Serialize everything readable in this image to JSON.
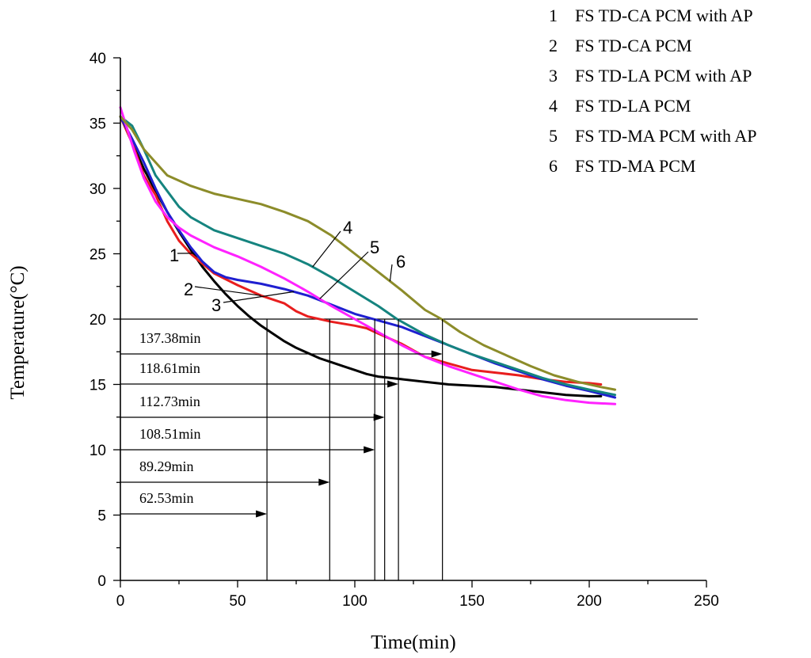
{
  "chart_data": {
    "type": "line",
    "xlabel": "Time(min)",
    "ylabel": "Temperature(°C)",
    "xlim": [
      0,
      250
    ],
    "ylim": [
      0,
      40
    ],
    "xticks": [
      0,
      50,
      100,
      150,
      200,
      250
    ],
    "yticks": [
      0,
      5,
      10,
      15,
      20,
      25,
      30,
      35,
      40
    ],
    "threshold_temperature": 20,
    "legend": [
      {
        "num": "1",
        "label": "FS TD-CA PCM with AP"
      },
      {
        "num": "2",
        "label": "FS TD-CA PCM"
      },
      {
        "num": "3",
        "label": "FS TD-LA PCM with AP"
      },
      {
        "num": "4",
        "label": "FS TD-LA PCM"
      },
      {
        "num": "5",
        "label": "FS TD-MA PCM with AP"
      },
      {
        "num": "6",
        "label": "FS TD-MA PCM"
      }
    ],
    "series": [
      {
        "id": "1",
        "name": "FS TD-CA PCM with AP",
        "color": "#000000",
        "points": [
          [
            0,
            35.5
          ],
          [
            5,
            33.5
          ],
          [
            10,
            31.5
          ],
          [
            15,
            29.8
          ],
          [
            20,
            28.2
          ],
          [
            25,
            26.7
          ],
          [
            30,
            25.3
          ],
          [
            35,
            24.0
          ],
          [
            40,
            22.9
          ],
          [
            45,
            21.9
          ],
          [
            50,
            21.0
          ],
          [
            55,
            20.2
          ],
          [
            60,
            19.5
          ],
          [
            65,
            18.9
          ],
          [
            70,
            18.3
          ],
          [
            75,
            17.8
          ],
          [
            80,
            17.4
          ],
          [
            85,
            17.0
          ],
          [
            90,
            16.7
          ],
          [
            95,
            16.4
          ],
          [
            100,
            16.1
          ],
          [
            105,
            15.8
          ],
          [
            110,
            15.6
          ],
          [
            115,
            15.5
          ],
          [
            120,
            15.4
          ],
          [
            130,
            15.2
          ],
          [
            140,
            15.0
          ],
          [
            150,
            14.9
          ],
          [
            160,
            14.8
          ],
          [
            170,
            14.6
          ],
          [
            180,
            14.4
          ],
          [
            190,
            14.2
          ],
          [
            200,
            14.1
          ],
          [
            205,
            14.1
          ]
        ]
      },
      {
        "id": "2",
        "name": "FS TD-CA PCM",
        "color": "#e81e1e",
        "points": [
          [
            0,
            35.5
          ],
          [
            5,
            33.5
          ],
          [
            10,
            31.0
          ],
          [
            15,
            29.5
          ],
          [
            20,
            27.5
          ],
          [
            25,
            26.0
          ],
          [
            30,
            25.0
          ],
          [
            40,
            23.5
          ],
          [
            50,
            22.6
          ],
          [
            60,
            21.8
          ],
          [
            70,
            21.2
          ],
          [
            75,
            20.6
          ],
          [
            80,
            20.2
          ],
          [
            90,
            19.8
          ],
          [
            100,
            19.5
          ],
          [
            105,
            19.3
          ],
          [
            110,
            18.9
          ],
          [
            115,
            18.5
          ],
          [
            120,
            18.1
          ],
          [
            125,
            17.6
          ],
          [
            130,
            17.1
          ],
          [
            140,
            16.6
          ],
          [
            150,
            16.1
          ],
          [
            160,
            15.9
          ],
          [
            170,
            15.7
          ],
          [
            180,
            15.4
          ],
          [
            190,
            15.2
          ],
          [
            200,
            15.1
          ],
          [
            205,
            15.0
          ]
        ]
      },
      {
        "id": "3",
        "name": "FS TD-LA PCM with AP",
        "color": "#1f1fd0",
        "points": [
          [
            0,
            35.5
          ],
          [
            5,
            33.8
          ],
          [
            10,
            32.0
          ],
          [
            15,
            30.0
          ],
          [
            20,
            28.2
          ],
          [
            25,
            26.8
          ],
          [
            30,
            25.5
          ],
          [
            35,
            24.4
          ],
          [
            40,
            23.6
          ],
          [
            45,
            23.2
          ],
          [
            50,
            23.0
          ],
          [
            60,
            22.7
          ],
          [
            70,
            22.3
          ],
          [
            80,
            21.8
          ],
          [
            90,
            21.1
          ],
          [
            100,
            20.4
          ],
          [
            110,
            19.9
          ],
          [
            120,
            19.4
          ],
          [
            130,
            18.7
          ],
          [
            140,
            18.0
          ],
          [
            150,
            17.3
          ],
          [
            160,
            16.6
          ],
          [
            170,
            16.0
          ],
          [
            180,
            15.4
          ],
          [
            190,
            14.9
          ],
          [
            200,
            14.5
          ],
          [
            211,
            14.0
          ]
        ]
      },
      {
        "id": "4",
        "name": "FS TD-LA PCM",
        "color": "#15847f",
        "points": [
          [
            0,
            35.5
          ],
          [
            5,
            34.8
          ],
          [
            10,
            33.0
          ],
          [
            15,
            31.0
          ],
          [
            20,
            29.8
          ],
          [
            25,
            28.6
          ],
          [
            30,
            27.8
          ],
          [
            40,
            26.8
          ],
          [
            50,
            26.2
          ],
          [
            60,
            25.6
          ],
          [
            70,
            25.0
          ],
          [
            80,
            24.2
          ],
          [
            90,
            23.2
          ],
          [
            100,
            22.1
          ],
          [
            110,
            21.0
          ],
          [
            118,
            20.0
          ],
          [
            130,
            18.8
          ],
          [
            140,
            18.0
          ],
          [
            150,
            17.3
          ],
          [
            160,
            16.7
          ],
          [
            170,
            16.1
          ],
          [
            180,
            15.5
          ],
          [
            190,
            15.0
          ],
          [
            200,
            14.6
          ],
          [
            211,
            14.2
          ]
        ]
      },
      {
        "id": "5",
        "name": "FS TD-MA PCM with AP",
        "color": "#ff22ff",
        "points": [
          [
            0,
            36.2
          ],
          [
            3,
            34.5
          ],
          [
            6,
            32.8
          ],
          [
            10,
            30.8
          ],
          [
            15,
            29.0
          ],
          [
            20,
            27.8
          ],
          [
            25,
            27.0
          ],
          [
            30,
            26.4
          ],
          [
            40,
            25.5
          ],
          [
            50,
            24.8
          ],
          [
            60,
            24.0
          ],
          [
            70,
            23.1
          ],
          [
            80,
            22.1
          ],
          [
            90,
            21.0
          ],
          [
            100,
            20.0
          ],
          [
            106,
            19.4
          ],
          [
            110,
            19.0
          ],
          [
            120,
            18.0
          ],
          [
            130,
            17.1
          ],
          [
            140,
            16.4
          ],
          [
            150,
            15.8
          ],
          [
            160,
            15.2
          ],
          [
            170,
            14.6
          ],
          [
            180,
            14.1
          ],
          [
            190,
            13.8
          ],
          [
            200,
            13.6
          ],
          [
            211,
            13.5
          ]
        ]
      },
      {
        "id": "6",
        "name": "FS TD-MA PCM",
        "color": "#8c8c2a",
        "points": [
          [
            0,
            35.5
          ],
          [
            5,
            34.5
          ],
          [
            10,
            33.0
          ],
          [
            15,
            32.0
          ],
          [
            20,
            31.0
          ],
          [
            30,
            30.2
          ],
          [
            40,
            29.6
          ],
          [
            50,
            29.2
          ],
          [
            60,
            28.8
          ],
          [
            70,
            28.2
          ],
          [
            80,
            27.5
          ],
          [
            90,
            26.4
          ],
          [
            100,
            25.0
          ],
          [
            110,
            23.6
          ],
          [
            120,
            22.2
          ],
          [
            130,
            20.7
          ],
          [
            137,
            20.0
          ],
          [
            145,
            19.0
          ],
          [
            155,
            18.0
          ],
          [
            165,
            17.2
          ],
          [
            175,
            16.4
          ],
          [
            185,
            15.7
          ],
          [
            195,
            15.2
          ],
          [
            205,
            14.8
          ],
          [
            211,
            14.6
          ]
        ]
      }
    ],
    "curve_labels": [
      {
        "text": "1",
        "series": "1"
      },
      {
        "text": "2",
        "series": "2"
      },
      {
        "text": "3",
        "series": "3"
      },
      {
        "text": "4",
        "series": "4"
      },
      {
        "text": "5",
        "series": "5"
      },
      {
        "text": "6",
        "series": "6"
      }
    ],
    "time_annotations": [
      {
        "label": "137.38min",
        "time": 137.38
      },
      {
        "label": "118.61min",
        "time": 118.61
      },
      {
        "label": "112.73min",
        "time": 112.73
      },
      {
        "label": "108.51min",
        "time": 108.51
      },
      {
        "label": "89.29min",
        "time": 89.29
      },
      {
        "label": "62.53min",
        "time": 62.53
      }
    ]
  }
}
